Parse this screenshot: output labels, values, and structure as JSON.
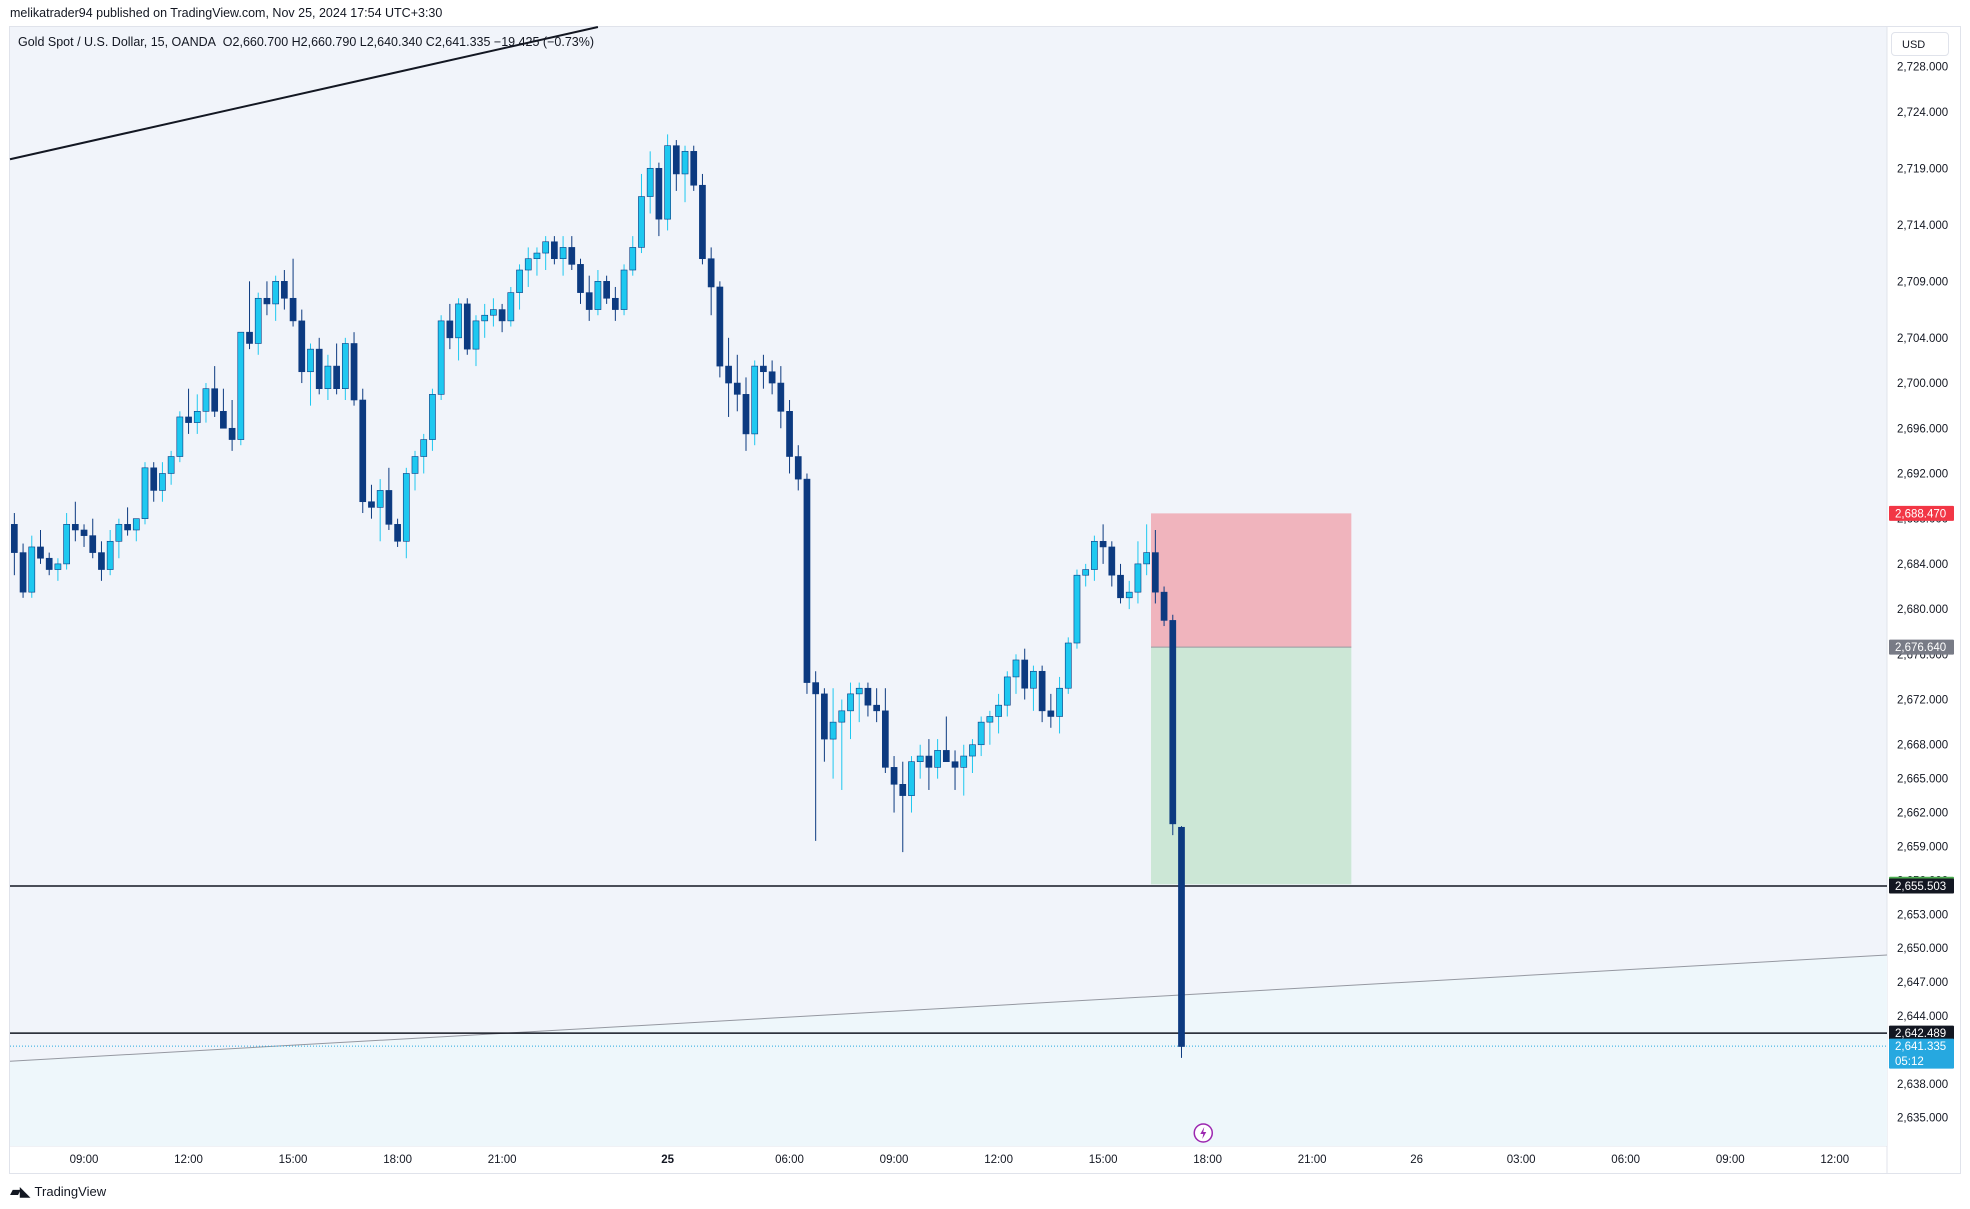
{
  "header": {
    "published_by": "melikatrader94 published on TradingView.com, Nov 25, 2024 17:54 UTC+3:30"
  },
  "legend": {
    "symbol": "Gold Spot / U.S. Dollar, 15, OANDA",
    "open_label": "O",
    "open": "2,660.700",
    "high_label": "H",
    "high": "2,660.790",
    "low_label": "L",
    "low": "2,640.340",
    "close_label": "C",
    "close": "2,641.335",
    "change": "−19.425 (−0.73%)"
  },
  "currency": "USD",
  "footer": {
    "brand": "TradingView"
  },
  "colors": {
    "up": "#1ec8f0",
    "down": "#0c3a80",
    "stop_zone": "#f0b4bd",
    "target_zone": "#cce7d6",
    "loss_tag": "#f23645",
    "entry_tag": "#787b86",
    "target_tag": "#4caf50",
    "level_tag": "#131722",
    "price_tag": "#26a8e0"
  },
  "chart_data": {
    "type": "candlestick",
    "timeframe": "15",
    "y_axis": {
      "ylim": [
        2632.5,
        2731.5
      ],
      "ticks": [
        "2,728.000",
        "2,724.000",
        "2,719.000",
        "2,714.000",
        "2,709.000",
        "2,704.000",
        "2,700.000",
        "2,696.000",
        "2,692.000",
        "2,688.000",
        "2,684.000",
        "2,680.000",
        "2,676.000",
        "2,672.000",
        "2,668.000",
        "2,665.000",
        "2,662.000",
        "2,659.000",
        "2,656.000",
        "2,653.000",
        "2,650.000",
        "2,647.000",
        "2,644.000",
        "2,641.000",
        "2,638.000",
        "2,635.000"
      ],
      "tick_values": [
        2728,
        2724,
        2719,
        2714,
        2709,
        2704,
        2700,
        2696,
        2692,
        2688,
        2684,
        2680,
        2676,
        2672,
        2668,
        2665,
        2662,
        2659,
        2656,
        2653,
        2650,
        2647,
        2644,
        2641,
        2638,
        2635
      ]
    },
    "x_axis": {
      "ticks": [
        {
          "label": "09:00",
          "bar": 8
        },
        {
          "label": "12:00",
          "bar": 20
        },
        {
          "label": "15:00",
          "bar": 32
        },
        {
          "label": "18:00",
          "bar": 44
        },
        {
          "label": "21:00",
          "bar": 56
        },
        {
          "label": "25",
          "bar": 75,
          "bold": true
        },
        {
          "label": "06:00",
          "bar": 89
        },
        {
          "label": "09:00",
          "bar": 101
        },
        {
          "label": "12:00",
          "bar": 113
        },
        {
          "label": "15:00",
          "bar": 125
        },
        {
          "label": "18:00",
          "bar": 137
        },
        {
          "label": "21:00",
          "bar": 149
        },
        {
          "label": "26",
          "bar": 161
        },
        {
          "label": "03:00",
          "bar": 173
        },
        {
          "label": "06:00",
          "bar": 185
        },
        {
          "label": "09:00",
          "bar": 197
        },
        {
          "label": "12:00",
          "bar": 209
        }
      ],
      "bar_range": [
        -0.5,
        215
      ]
    },
    "ohlc": [
      [
        2687.5,
        2688.5,
        2683.0,
        2685.0
      ],
      [
        2685.0,
        2685.8,
        2681.0,
        2681.5
      ],
      [
        2681.5,
        2686.5,
        2681.0,
        2685.5
      ],
      [
        2685.5,
        2687.0,
        2684.0,
        2684.5
      ],
      [
        2684.5,
        2685.0,
        2683.0,
        2683.5
      ],
      [
        2683.5,
        2684.5,
        2682.5,
        2684.0
      ],
      [
        2684.0,
        2688.5,
        2683.5,
        2687.5
      ],
      [
        2687.5,
        2689.5,
        2686.0,
        2687.0
      ],
      [
        2687.0,
        2687.5,
        2685.5,
        2686.5
      ],
      [
        2686.5,
        2688.0,
        2684.5,
        2685.0
      ],
      [
        2685.0,
        2686.0,
        2682.5,
        2683.5
      ],
      [
        2683.5,
        2687.0,
        2683.0,
        2686.0
      ],
      [
        2686.0,
        2688.0,
        2684.5,
        2687.5
      ],
      [
        2687.5,
        2689.0,
        2686.5,
        2687.0
      ],
      [
        2687.0,
        2688.0,
        2686.0,
        2688.0
      ],
      [
        2688.0,
        2693.0,
        2687.5,
        2692.5
      ],
      [
        2692.5,
        2693.0,
        2689.5,
        2690.5
      ],
      [
        2690.5,
        2693.0,
        2689.5,
        2692.0
      ],
      [
        2692.0,
        2694.0,
        2691.0,
        2693.5
      ],
      [
        2693.5,
        2697.5,
        2693.0,
        2697.0
      ],
      [
        2697.0,
        2699.5,
        2695.5,
        2696.5
      ],
      [
        2696.5,
        2699.0,
        2695.5,
        2697.5
      ],
      [
        2697.5,
        2700.0,
        2696.5,
        2699.5
      ],
      [
        2699.5,
        2701.5,
        2697.0,
        2697.5
      ],
      [
        2697.5,
        2699.5,
        2696.0,
        2696.0
      ],
      [
        2696.0,
        2698.5,
        2694.0,
        2695.0
      ],
      [
        2695.0,
        2704.5,
        2694.5,
        2704.5
      ],
      [
        2704.5,
        2709.0,
        2703.0,
        2703.5
      ],
      [
        2703.5,
        2708.0,
        2702.5,
        2707.5
      ],
      [
        2707.5,
        2709.0,
        2706.0,
        2707.0
      ],
      [
        2707.0,
        2709.5,
        2705.5,
        2709.0
      ],
      [
        2709.0,
        2710.0,
        2706.5,
        2707.5
      ],
      [
        2707.5,
        2711.0,
        2705.0,
        2705.5
      ],
      [
        2705.5,
        2706.5,
        2700.0,
        2701.0
      ],
      [
        2701.0,
        2703.5,
        2698.0,
        2703.0
      ],
      [
        2703.0,
        2704.0,
        2699.0,
        2699.5
      ],
      [
        2699.5,
        2702.5,
        2698.5,
        2701.5
      ],
      [
        2701.5,
        2703.5,
        2699.0,
        2699.5
      ],
      [
        2699.5,
        2704.0,
        2698.5,
        2703.5
      ],
      [
        2703.5,
        2704.5,
        2698.0,
        2698.5
      ],
      [
        2698.5,
        2699.5,
        2688.5,
        2689.5
      ],
      [
        2689.5,
        2691.0,
        2688.0,
        2689.0
      ],
      [
        2689.0,
        2691.5,
        2686.0,
        2690.5
      ],
      [
        2690.5,
        2692.5,
        2687.0,
        2687.5
      ],
      [
        2687.5,
        2688.0,
        2685.5,
        2686.0
      ],
      [
        2686.0,
        2692.5,
        2684.5,
        2692.0
      ],
      [
        2692.0,
        2694.0,
        2690.5,
        2693.5
      ],
      [
        2693.5,
        2695.5,
        2692.0,
        2695.0
      ],
      [
        2695.0,
        2699.5,
        2694.0,
        2699.0
      ],
      [
        2699.0,
        2706.0,
        2698.5,
        2705.5
      ],
      [
        2705.5,
        2707.0,
        2703.0,
        2704.0
      ],
      [
        2704.0,
        2707.5,
        2702.0,
        2707.0
      ],
      [
        2707.0,
        2707.5,
        2702.5,
        2703.0
      ],
      [
        2703.0,
        2706.0,
        2701.5,
        2705.5
      ],
      [
        2705.5,
        2707.0,
        2704.0,
        2706.0
      ],
      [
        2706.0,
        2707.5,
        2705.0,
        2706.5
      ],
      [
        2706.5,
        2707.0,
        2704.5,
        2705.5
      ],
      [
        2705.5,
        2708.5,
        2705.0,
        2708.0
      ],
      [
        2708.0,
        2710.5,
        2706.5,
        2710.0
      ],
      [
        2710.0,
        2712.0,
        2708.5,
        2711.0
      ],
      [
        2711.0,
        2712.0,
        2709.5,
        2711.5
      ],
      [
        2711.5,
        2713.0,
        2710.0,
        2712.5
      ],
      [
        2712.5,
        2713.0,
        2710.5,
        2711.0
      ],
      [
        2711.0,
        2713.0,
        2709.5,
        2712.0
      ],
      [
        2712.0,
        2713.0,
        2710.0,
        2710.5
      ],
      [
        2710.5,
        2711.0,
        2707.0,
        2708.0
      ],
      [
        2708.0,
        2709.5,
        2705.5,
        2706.5
      ],
      [
        2706.5,
        2710.0,
        2706.0,
        2709.0
      ],
      [
        2709.0,
        2709.5,
        2707.0,
        2707.5
      ],
      [
        2707.5,
        2708.5,
        2705.5,
        2706.5
      ],
      [
        2706.5,
        2710.5,
        2706.0,
        2710.0
      ],
      [
        2710.0,
        2713.0,
        2709.5,
        2712.0
      ],
      [
        2712.0,
        2718.5,
        2711.5,
        2716.5
      ],
      [
        2716.5,
        2720.5,
        2715.0,
        2719.0
      ],
      [
        2719.0,
        2719.5,
        2713.0,
        2714.5
      ],
      [
        2714.5,
        2722.0,
        2713.5,
        2721.0
      ],
      [
        2721.0,
        2721.5,
        2717.0,
        2718.5
      ],
      [
        2718.5,
        2721.0,
        2716.0,
        2720.5
      ],
      [
        2720.5,
        2721.0,
        2717.0,
        2717.5
      ],
      [
        2717.5,
        2718.5,
        2710.5,
        2711.0
      ],
      [
        2711.0,
        2712.0,
        2706.0,
        2708.5
      ],
      [
        2708.5,
        2709.0,
        2700.5,
        2701.5
      ],
      [
        2701.5,
        2704.0,
        2697.0,
        2700.0
      ],
      [
        2700.0,
        2702.5,
        2697.5,
        2699.0
      ],
      [
        2699.0,
        2700.5,
        2694.0,
        2695.5
      ],
      [
        2695.5,
        2702.0,
        2694.5,
        2701.5
      ],
      [
        2701.5,
        2702.5,
        2699.5,
        2701.0
      ],
      [
        2701.0,
        2702.0,
        2699.0,
        2700.0
      ],
      [
        2700.0,
        2701.5,
        2696.0,
        2697.5
      ],
      [
        2697.5,
        2698.5,
        2692.0,
        2693.5
      ],
      [
        2693.5,
        2694.5,
        2690.5,
        2691.5
      ],
      [
        2691.5,
        2692.0,
        2672.5,
        2673.5
      ],
      [
        2673.5,
        2674.5,
        2659.5,
        2672.5
      ],
      [
        2672.5,
        2673.0,
        2666.5,
        2668.5
      ],
      [
        2668.5,
        2673.0,
        2665.0,
        2670.0
      ],
      [
        2670.0,
        2672.0,
        2664.0,
        2671.0
      ],
      [
        2671.0,
        2673.5,
        2668.5,
        2672.5
      ],
      [
        2672.5,
        2673.5,
        2670.0,
        2673.0
      ],
      [
        2673.0,
        2673.5,
        2670.5,
        2671.5
      ],
      [
        2671.5,
        2673.0,
        2670.0,
        2671.0
      ],
      [
        2671.0,
        2673.0,
        2665.5,
        2666.0
      ],
      [
        2666.0,
        2667.0,
        2662.0,
        2664.5
      ],
      [
        2664.5,
        2666.5,
        2658.5,
        2663.5
      ],
      [
        2663.5,
        2667.0,
        2662.0,
        2666.5
      ],
      [
        2666.5,
        2668.0,
        2665.0,
        2667.0
      ],
      [
        2667.0,
        2668.5,
        2664.0,
        2666.0
      ],
      [
        2666.0,
        2668.5,
        2665.0,
        2667.5
      ],
      [
        2667.5,
        2670.5,
        2666.5,
        2666.5
      ],
      [
        2666.5,
        2667.5,
        2664.0,
        2666.0
      ],
      [
        2666.0,
        2668.0,
        2663.5,
        2667.0
      ],
      [
        2667.0,
        2668.5,
        2665.5,
        2668.0
      ],
      [
        2668.0,
        2670.5,
        2667.0,
        2670.0
      ],
      [
        2670.0,
        2671.0,
        2668.0,
        2670.5
      ],
      [
        2670.5,
        2672.5,
        2669.0,
        2671.5
      ],
      [
        2671.5,
        2674.5,
        2670.5,
        2674.0
      ],
      [
        2674.0,
        2676.0,
        2672.5,
        2675.5
      ],
      [
        2675.5,
        2676.5,
        2672.0,
        2673.0
      ],
      [
        2673.0,
        2675.0,
        2671.0,
        2674.5
      ],
      [
        2674.5,
        2675.0,
        2670.0,
        2671.0
      ],
      [
        2671.0,
        2672.5,
        2669.5,
        2670.5
      ],
      [
        2670.5,
        2674.0,
        2669.0,
        2673.0
      ],
      [
        2673.0,
        2677.5,
        2672.5,
        2677.0
      ],
      [
        2677.0,
        2683.5,
        2676.5,
        2683.0
      ],
      [
        2683.0,
        2684.0,
        2682.0,
        2683.5
      ],
      [
        2683.5,
        2686.5,
        2682.5,
        2686.0
      ],
      [
        2686.0,
        2687.5,
        2684.0,
        2685.5
      ],
      [
        2685.5,
        2686.0,
        2682.0,
        2683.0
      ],
      [
        2683.0,
        2684.0,
        2680.5,
        2681.0
      ],
      [
        2681.0,
        2682.5,
        2680.0,
        2681.5
      ],
      [
        2681.5,
        2686.0,
        2680.5,
        2684.0
      ],
      [
        2684.0,
        2687.5,
        2683.0,
        2685.0
      ],
      [
        2685.0,
        2687.0,
        2680.5,
        2681.5
      ],
      [
        2681.5,
        2682.0,
        2678.5,
        2679.0
      ],
      [
        2679.0,
        2679.5,
        2660.0,
        2661.0
      ],
      [
        2660.7,
        2660.8,
        2640.3,
        2641.3
      ]
    ],
    "trendlines": [
      {
        "name": "upper-trendline",
        "from": [
          -0.5,
          2719.8
        ],
        "to": [
          67,
          2731.5
        ],
        "color": "#131722"
      },
      {
        "name": "lower-trendline",
        "from": [
          -0.5,
          2640.0
        ],
        "to": [
          215,
          2649.4
        ],
        "color": "#9598a1"
      }
    ],
    "horizontal_levels": [
      {
        "name": "support-level-1",
        "value": 2655.503,
        "label": "2,655.503"
      },
      {
        "name": "support-level-2",
        "value": 2642.489,
        "label": "2,642.489"
      }
    ],
    "position": {
      "type": "short",
      "bar_from": 131,
      "bar_to": 154,
      "stop": 2688.47,
      "entry": 2676.64,
      "target": 2655.654,
      "stop_label": "2,688.470",
      "entry_label": "2,676.640",
      "target_label": "2,655.654"
    },
    "last_price": {
      "value": 2641.335,
      "label": "2,641.335",
      "countdown": "05:12"
    },
    "event_marker_bar": 137
  }
}
